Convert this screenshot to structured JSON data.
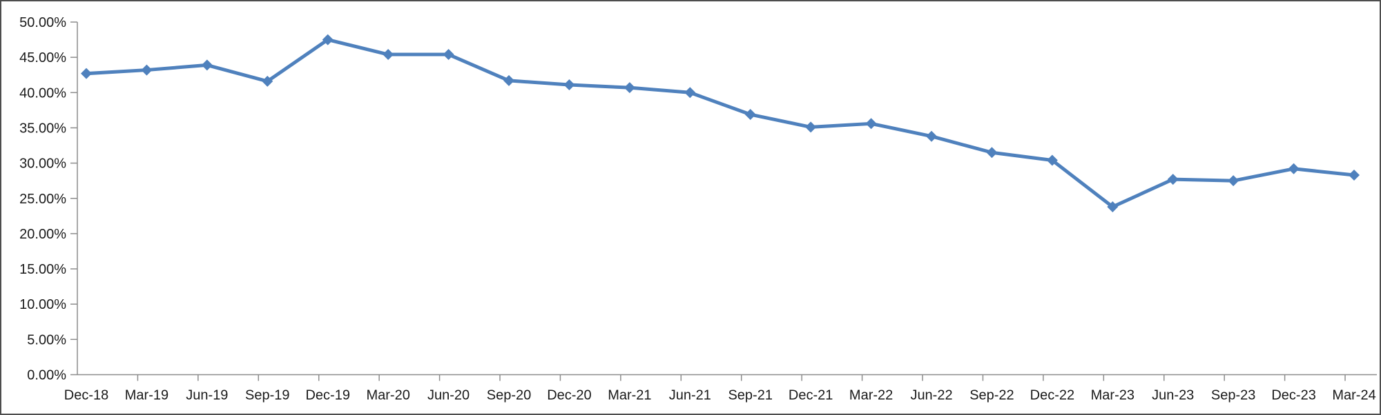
{
  "chart_data": {
    "type": "line",
    "title": "",
    "xlabel": "",
    "ylabel": "",
    "categories": [
      "Dec-18",
      "Mar-19",
      "Jun-19",
      "Sep-19",
      "Dec-19",
      "Mar-20",
      "Jun-20",
      "Sep-20",
      "Dec-20",
      "Mar-21",
      "Jun-21",
      "Sep-21",
      "Dec-21",
      "Mar-22",
      "Jun-22",
      "Sep-22",
      "Dec-22",
      "Mar-23",
      "Jun-23",
      "Sep-23",
      "Dec-23",
      "Mar-24"
    ],
    "series": [
      {
        "name": "percentage-series",
        "values": [
          42.7,
          43.2,
          43.9,
          41.6,
          47.5,
          45.4,
          45.4,
          41.7,
          41.1,
          40.7,
          40.0,
          36.9,
          35.1,
          35.6,
          33.8,
          31.5,
          30.4,
          23.8,
          27.7,
          27.5,
          29.2,
          28.3
        ]
      }
    ],
    "ylim": [
      0,
      50
    ],
    "y_tick_step": 5,
    "y_tick_labels": [
      "0.00%",
      "5.00%",
      "10.00%",
      "15.00%",
      "20.00%",
      "25.00%",
      "30.00%",
      "35.00%",
      "40.00%",
      "45.00%",
      "50.00%"
    ],
    "grid": false,
    "legend": "none",
    "marker": "diamond",
    "colors": {
      "line": "#4F81BD",
      "marker": "#4F81BD",
      "axis": "#8c8c8c",
      "tick_text": "#1a1a1a",
      "frame_border": "#4d4d4d",
      "background": "#ffffff"
    }
  }
}
